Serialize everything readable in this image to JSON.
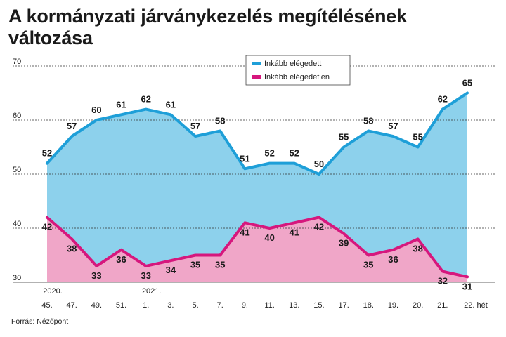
{
  "chart_data": {
    "type": "area",
    "title": "A kormányzati járványkezelés megítélésének változása",
    "source": "Forrás: Nézőpont",
    "ylim": [
      30,
      70
    ],
    "yticks": [
      30,
      40,
      50,
      60,
      70
    ],
    "grid": true,
    "legend_position": "top-right",
    "x_labels": [
      {
        "top": "2020.",
        "bottom": "45."
      },
      {
        "top": "",
        "bottom": "47."
      },
      {
        "top": "",
        "bottom": "49."
      },
      {
        "top": "",
        "bottom": "51."
      },
      {
        "top": "2021.",
        "bottom": "1."
      },
      {
        "top": "",
        "bottom": "3."
      },
      {
        "top": "",
        "bottom": "5."
      },
      {
        "top": "",
        "bottom": "7."
      },
      {
        "top": "",
        "bottom": "9."
      },
      {
        "top": "",
        "bottom": "11."
      },
      {
        "top": "",
        "bottom": "13."
      },
      {
        "top": "",
        "bottom": "15."
      },
      {
        "top": "",
        "bottom": "17."
      },
      {
        "top": "",
        "bottom": "18."
      },
      {
        "top": "",
        "bottom": "19."
      },
      {
        "top": "",
        "bottom": "20."
      },
      {
        "top": "",
        "bottom": "21."
      },
      {
        "top": "",
        "bottom": "22. hét"
      }
    ],
    "series": [
      {
        "name": "Inkább elégedett",
        "line_color": "#1e9fd8",
        "fill_color": "#8dd1ec",
        "values": [
          52,
          57,
          60,
          61,
          62,
          61,
          57,
          58,
          51,
          52,
          52,
          50,
          55,
          58,
          57,
          55,
          62,
          65
        ]
      },
      {
        "name": "Inkább elégedetlen",
        "line_color": "#d6177d",
        "fill_color": "#f0a6c8",
        "values": [
          42,
          38,
          33,
          36,
          33,
          34,
          35,
          35,
          41,
          40,
          41,
          42,
          39,
          35,
          36,
          38,
          32,
          31
        ]
      }
    ]
  }
}
